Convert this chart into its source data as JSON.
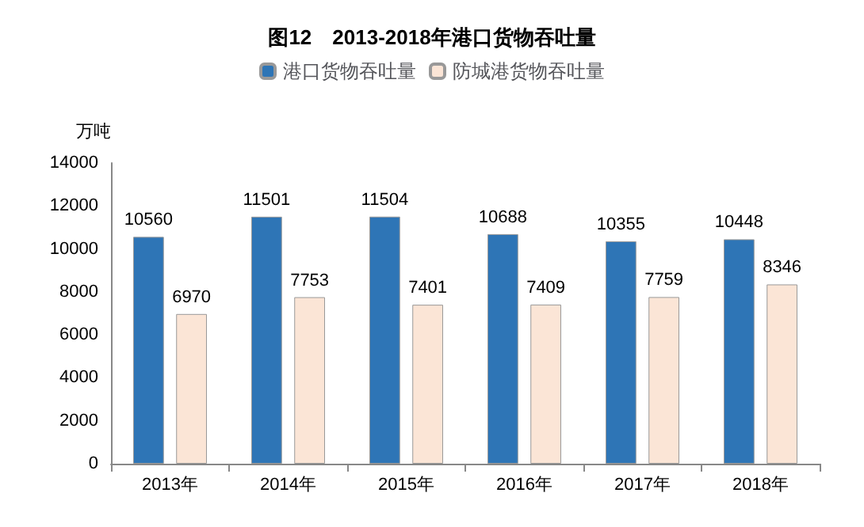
{
  "chart_data": {
    "type": "bar",
    "title": "图12　2013-2018年港口货物吞吐量",
    "ylabel": "万吨",
    "categories": [
      "2013年",
      "2014年",
      "2015年",
      "2016年",
      "2017年",
      "2018年"
    ],
    "series": [
      {
        "name": "港口货物吞吐量",
        "color": "#2e75b6",
        "values": [
          10560,
          11501,
          11504,
          10688,
          10355,
          10448
        ]
      },
      {
        "name": "防城港货物吞吐量",
        "color": "#fbe5d6",
        "values": [
          6970,
          7753,
          7401,
          7409,
          7759,
          8346
        ]
      }
    ],
    "ylim": [
      0,
      14000
    ],
    "yticks": [
      0,
      2000,
      4000,
      6000,
      8000,
      10000,
      12000,
      14000
    ],
    "grid": false,
    "legend": "top",
    "data_labels": true
  }
}
